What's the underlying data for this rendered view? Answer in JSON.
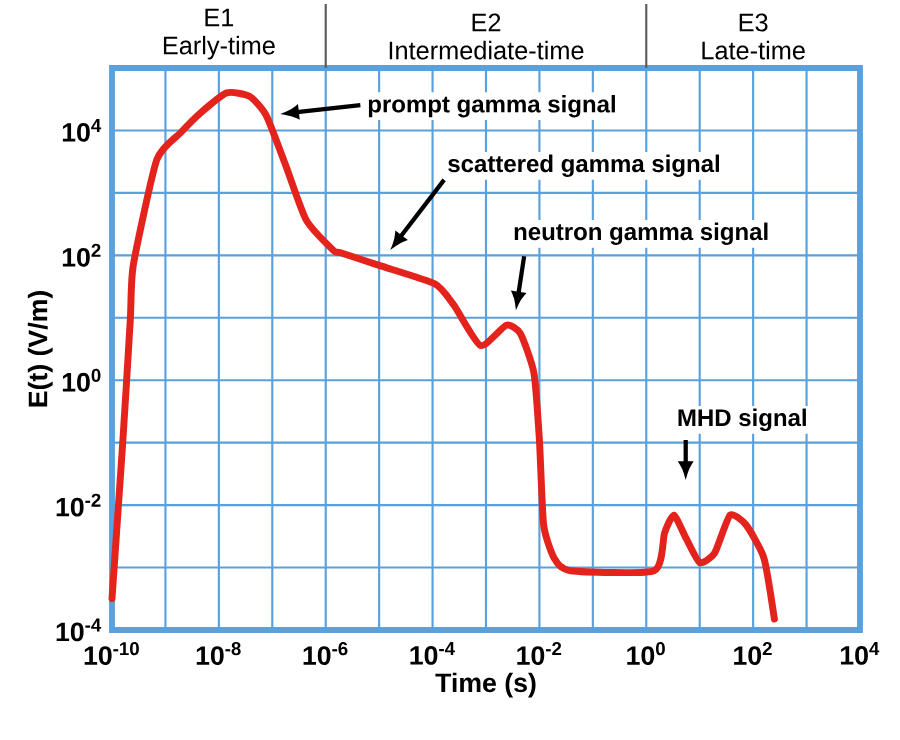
{
  "chart_data": {
    "type": "line",
    "xlabel": "Time (s)",
    "ylabel": "E(t) (V/m)",
    "log": "xy",
    "grid": true,
    "xlim": [
      1e-10,
      10000
    ],
    "ylim": [
      0.0001,
      100000
    ],
    "xticks": [
      {
        "value": 1e-10,
        "label": "10$^{-10}$"
      },
      {
        "value": 1e-09,
        "label": null
      },
      {
        "value": 1e-08,
        "label": "10$^{-8}$"
      },
      {
        "value": 1e-07,
        "label": null
      },
      {
        "value": 1e-06,
        "label": "10$^{-6}$"
      },
      {
        "value": 1e-05,
        "label": null
      },
      {
        "value": 0.0001,
        "label": "10$^{-4}$"
      },
      {
        "value": 0.001,
        "label": null
      },
      {
        "value": 0.01,
        "label": "10$^{-2}$"
      },
      {
        "value": 0.1,
        "label": null
      },
      {
        "value": 1,
        "label": "10$^{0}$"
      },
      {
        "value": 10,
        "label": null
      },
      {
        "value": 100,
        "label": "10$^{2}$"
      },
      {
        "value": 1000,
        "label": null
      },
      {
        "value": 10000,
        "label": "10$^{4}$"
      }
    ],
    "yticks": [
      {
        "value": 0.0001,
        "label": "10$^{-4}$"
      },
      {
        "value": 0.001,
        "label": null
      },
      {
        "value": 0.01,
        "label": "10$^{-2}$"
      },
      {
        "value": 0.1,
        "label": null
      },
      {
        "value": 1,
        "label": "10$^{0}$"
      },
      {
        "value": 10,
        "label": null
      },
      {
        "value": 100,
        "label": "10$^{2}$"
      },
      {
        "value": 1000,
        "label": null
      },
      {
        "value": 10000,
        "label": "10$^{4}$"
      },
      {
        "value": 100000,
        "label": null
      }
    ],
    "x": [
      1e-10,
      1.6e-10,
      2.2e-10,
      2.5e-10,
      6.9e-10,
      1.9e-09,
      4.5e-09,
      1.4e-08,
      3.8e-08,
      7.8e-08,
      1.8e-07,
      4.3e-07,
      1.4e-06,
      1.9e-06,
      1e-05,
      0.00011,
      0.00025,
      0.00079,
      0.0024,
      0.0044,
      0.0079,
      0.01,
      0.012,
      0.019,
      0.038,
      1.4,
      2.2,
      3.3,
      5.6,
      10,
      19,
      37,
      74,
      160,
      250
    ],
    "series": [
      {
        "color": "#e3231c",
        "values": [
          0.00032,
          0.11,
          9.3,
          69,
          3400,
          9100,
          19000,
          40000,
          35000,
          17000,
          2700,
          370,
          120,
          110,
          69,
          35,
          16,
          3.6,
          7.6,
          5.6,
          1.3,
          0.11,
          0.0048,
          0.0014,
          0.00089,
          0.00089,
          0.0036,
          0.0069,
          0.0029,
          0.0012,
          0.0017,
          0.0069,
          0.0048,
          0.0014,
          0.00015
        ]
      }
    ],
    "annotations": [
      "E1 Early-time",
      "E2 Intermediate-time",
      "E3 Late-time",
      "prompt gamma signal",
      "scattered gamma signal",
      "neutron gamma signal",
      "MHD signal"
    ]
  }
}
